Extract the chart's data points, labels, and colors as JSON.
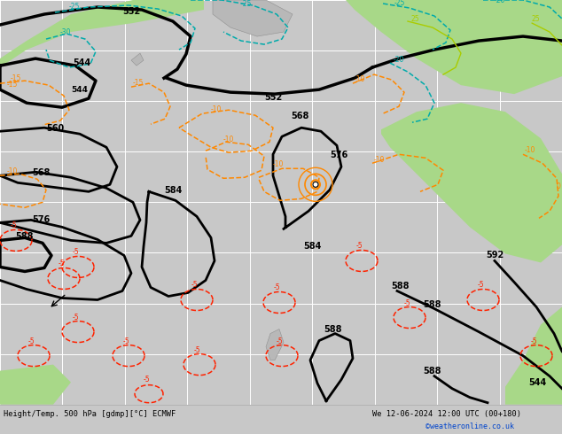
{
  "bottom_label": "Height/Temp. 500 hPa [gdmp][°C] ECMWF",
  "bottom_date": "We 12-06-2024 12:00 UTC (00+180)",
  "copyright": "©weatheronline.co.uk",
  "bg_color": "#c8c8c8",
  "map_bg": "#dcdcdc",
  "green_fill": "#a8d888",
  "fig_width": 6.34,
  "fig_height": 4.9,
  "dpi": 100,
  "bottom_bar_color": "#e8e8e8",
  "grid_color": "#ffffff",
  "black": "#000000",
  "cyan": "#00aaaa",
  "orange": "#ff8800",
  "red": "#ff2200",
  "yellow_green": "#aacc00"
}
